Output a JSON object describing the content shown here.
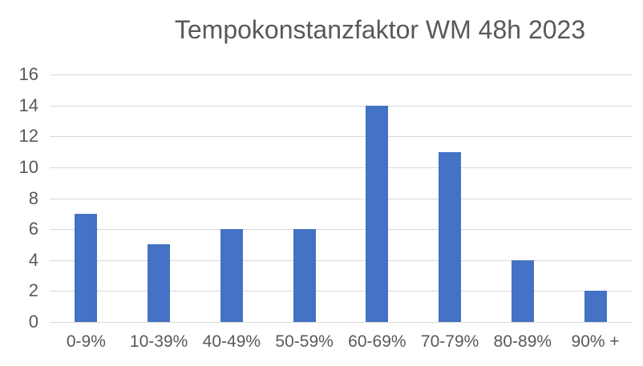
{
  "chart_data": {
    "type": "bar",
    "title": "Tempokonstanzfaktor WM 48h 2023",
    "categories": [
      "0-9%",
      "10-39%",
      "40-49%",
      "50-59%",
      "60-69%",
      "70-79%",
      "80-89%",
      "90% +"
    ],
    "values": [
      7,
      5,
      6,
      6,
      14,
      11,
      4,
      2
    ],
    "xlabel": "",
    "ylabel": "",
    "ylim": [
      0,
      16
    ],
    "yticks": [
      0,
      2,
      4,
      6,
      8,
      10,
      12,
      14,
      16
    ],
    "grid": true,
    "legend": "none",
    "colors": {
      "bar": "#4472C4",
      "gridline": "#D9D9D9",
      "axis_line": "#D9D9D9",
      "text": "#595959",
      "background": "#FFFFFF"
    }
  }
}
